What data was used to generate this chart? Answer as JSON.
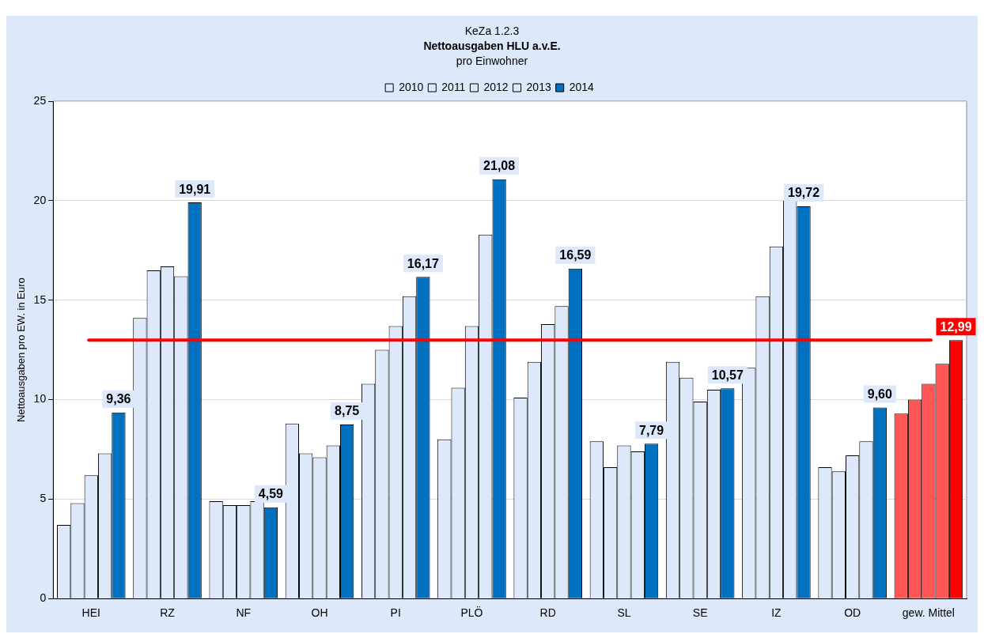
{
  "chart_data": {
    "type": "bar",
    "annotations": [
      "KeZa 1.2.3"
    ],
    "title": "Nettoausgaben HLU a.v.E.",
    "subtitle": "pro Einwohner",
    "ylabel": "Nettoausgaben pro EW. in Euro",
    "categories": [
      "HEI",
      "RZ",
      "NF",
      "OH",
      "PI",
      "PLÖ",
      "RD",
      "SL",
      "SE",
      "IZ",
      "OD",
      "gew. Mittel"
    ],
    "series": [
      {
        "name": "2010",
        "color": "#dde8fb",
        "colors": [
          "#dde8fb",
          "#dde8fb",
          "#dde8fb",
          "#dde8fb",
          "#dde8fb",
          "#dde8fb",
          "#dde8fb",
          "#dde8fb",
          "#dde8fb",
          "#dde8fb",
          "#dde8fb",
          "#ff5555"
        ],
        "values": [
          3.7,
          14.1,
          4.9,
          8.8,
          10.8,
          8.0,
          10.1,
          7.9,
          11.9,
          11.6,
          6.6,
          9.3
        ]
      },
      {
        "name": "2011",
        "color": "#dde8fb",
        "colors": [
          "#dde8fb",
          "#dde8fb",
          "#dde8fb",
          "#dde8fb",
          "#dde8fb",
          "#dde8fb",
          "#dde8fb",
          "#dde8fb",
          "#dde8fb",
          "#dde8fb",
          "#dde8fb",
          "#ff5555"
        ],
        "values": [
          4.8,
          16.5,
          4.7,
          7.3,
          12.5,
          10.6,
          11.9,
          6.6,
          11.1,
          15.2,
          6.4,
          10.0
        ]
      },
      {
        "name": "2012",
        "color": "#dde8fb",
        "colors": [
          "#dde8fb",
          "#dde8fb",
          "#dde8fb",
          "#dde8fb",
          "#dde8fb",
          "#dde8fb",
          "#dde8fb",
          "#dde8fb",
          "#dde8fb",
          "#dde8fb",
          "#dde8fb",
          "#ff5555"
        ],
        "values": [
          6.2,
          16.7,
          4.7,
          7.1,
          13.7,
          13.7,
          13.8,
          7.7,
          9.9,
          17.7,
          7.2,
          10.8
        ]
      },
      {
        "name": "2013",
        "color": "#dde8fb",
        "colors": [
          "#dde8fb",
          "#dde8fb",
          "#dde8fb",
          "#dde8fb",
          "#dde8fb",
          "#dde8fb",
          "#dde8fb",
          "#dde8fb",
          "#dde8fb",
          "#dde8fb",
          "#dde8fb",
          "#ff5555"
        ],
        "values": [
          7.3,
          16.2,
          4.9,
          7.7,
          15.2,
          18.3,
          14.7,
          7.4,
          10.5,
          20.0,
          7.9,
          11.8
        ]
      },
      {
        "name": "2014",
        "color": "#0070c0",
        "colors": [
          "#0070c0",
          "#0070c0",
          "#0070c0",
          "#0070c0",
          "#0070c0",
          "#0070c0",
          "#0070c0",
          "#0070c0",
          "#0070c0",
          "#0070c0",
          "#0070c0",
          "#ff0000"
        ],
        "values": [
          9.36,
          19.91,
          4.59,
          8.75,
          16.17,
          21.08,
          16.59,
          7.79,
          10.57,
          19.72,
          9.6,
          12.99
        ],
        "value_labels": [
          "9,36",
          "19,91",
          "4,59",
          "8,75",
          "16,17",
          "21,08",
          "16,59",
          "7,79",
          "10,57",
          "19,72",
          "9,60",
          "12,99"
        ]
      }
    ],
    "ylim": [
      0,
      25
    ],
    "yticks": [
      0,
      5,
      10,
      15,
      20,
      25
    ],
    "grid": "y",
    "legend": "top",
    "ref_lines": [
      {
        "axis": "y",
        "value": 12.99,
        "color": "#ff0000"
      }
    ]
  }
}
